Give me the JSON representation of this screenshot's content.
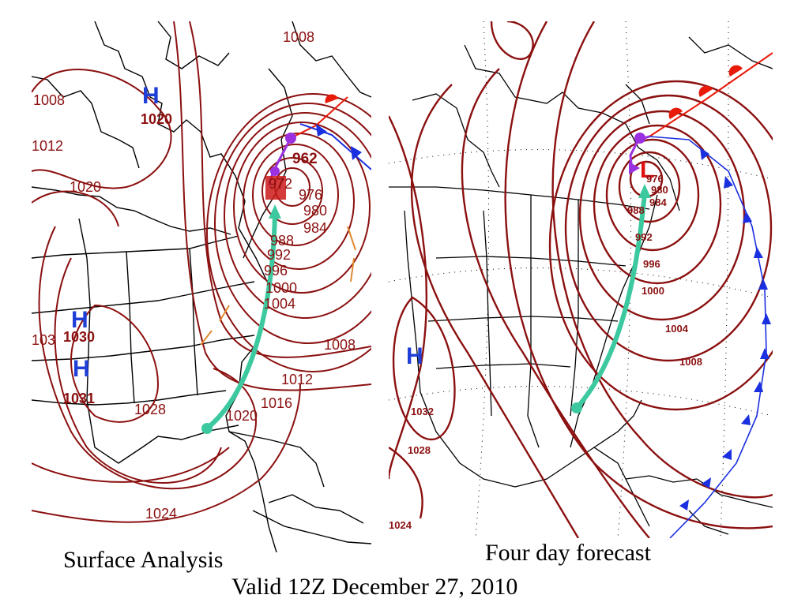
{
  "captions": {
    "left": "Surface Analysis",
    "right": "Four day forecast",
    "valid": "Valid 12Z December 27, 2010"
  },
  "colors": {
    "isobar": "#8b1010",
    "high_center": "#1f3fd6",
    "low_center": "#e01010",
    "cold_front": "#1a2fe0",
    "warm_front": "#e81a0a",
    "occluded_front": "#9b30e0",
    "storm_track": "#3dc9a0",
    "trough": "#e08a30",
    "coastline": "#000000"
  },
  "left_map": {
    "title": "Surface Analysis",
    "centers": [
      {
        "type": "H",
        "pressure": "1020"
      },
      {
        "type": "H",
        "pressure": "1030"
      },
      {
        "type": "H",
        "pressure": "1031"
      }
    ],
    "isobar_labels": [
      "1008",
      "1012",
      "1020",
      "1008",
      "1024",
      "1028",
      "1020",
      "1016",
      "1012",
      "1008",
      "1004",
      "1000",
      "996",
      "992",
      "988",
      "984",
      "980",
      "976",
      "972",
      "962",
      "103"
    ]
  },
  "right_map": {
    "title": "Four day forecast",
    "centers": [
      {
        "type": "H",
        "pressure": ""
      },
      {
        "type": "L",
        "pressure": ""
      }
    ],
    "isobar_labels": [
      "976",
      "980",
      "984",
      "988",
      "992",
      "996",
      "1000",
      "1004",
      "1008",
      "1032",
      "1028",
      "1024"
    ]
  }
}
